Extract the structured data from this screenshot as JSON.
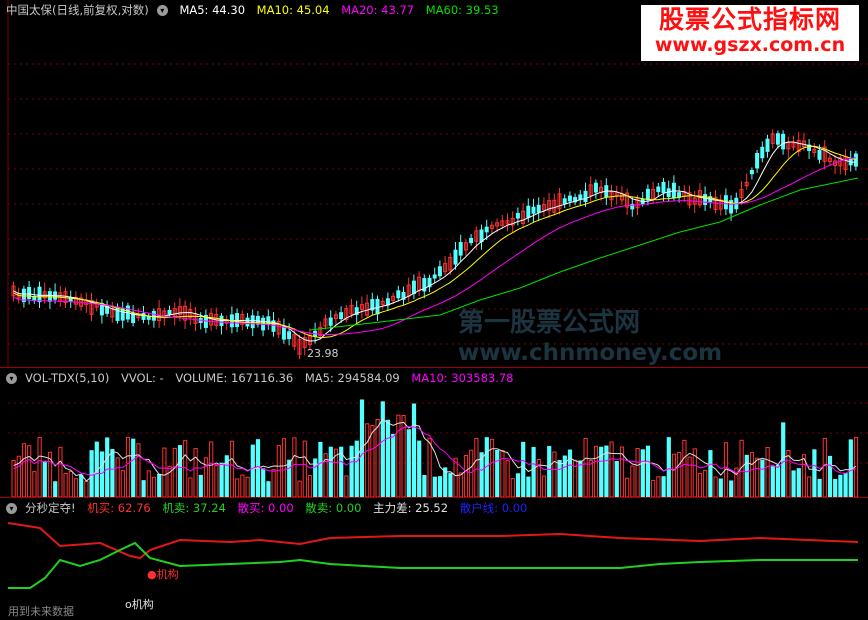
{
  "price_header": {
    "stock": "中国太保(日线,前复权,对数)",
    "ma5": "MA5: 44.30",
    "ma10": "MA10: 45.04",
    "ma20": "MA20: 43.77",
    "ma60": "MA60: 39.53"
  },
  "price_low_label": "23.98",
  "vol_header": {
    "name": "VOL-TDX(5,10)",
    "vvol": "VVOL: -",
    "volume": "VOLUME: 167116.36",
    "ma5": "MA5: 294584.09",
    "ma10": "MA10: 303583.78"
  },
  "ind_header": {
    "name": "分秒定夺!",
    "jimai": "机买: 62.76",
    "jimai2": "机卖: 37.24",
    "sanmai": "散买: 0.00",
    "sanmai2": "散卖: 0.00",
    "zhuli": "主力差: 25.52",
    "last": "散户线: 0.00"
  },
  "signal_red": "●机构",
  "signal_white": "o机构",
  "future_note": "用到未来数据",
  "logo": {
    "title": "股票公式指标网",
    "url": "www.gszx.com.cn"
  },
  "watermark": {
    "line1": "第一股票公式网",
    "line2": "www.chnmoney.com"
  },
  "colors": {
    "up": "#ff3232",
    "down": "#54ffff",
    "ma5": "#ffffff",
    "ma10": "#ffff00",
    "ma20": "#ff00ff",
    "ma60": "#00e000",
    "ind_red": "#e01818",
    "ind_green": "#20d020",
    "grid": "#7a0000"
  }
}
